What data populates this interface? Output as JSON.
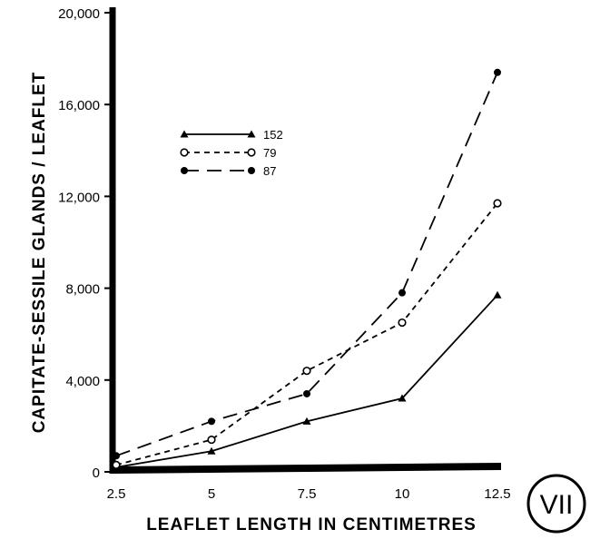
{
  "chart_data": {
    "type": "line",
    "xlabel": "LEAFLET LENGTH IN CENTIMETRES",
    "ylabel": "CAPITATE-SESSILE GLANDS / LEAFLET",
    "x": [
      2.5,
      5,
      7.5,
      10,
      12.5
    ],
    "x_tick_labels": [
      "2.5",
      "5",
      "7.5",
      "10",
      "12.5"
    ],
    "y_ticks": [
      0,
      4000,
      8000,
      12000,
      16000,
      20000
    ],
    "y_tick_labels": [
      "0",
      "4,000",
      "8,000",
      "12,000",
      "16,000",
      "20,000"
    ],
    "xlim": [
      2.5,
      12.5
    ],
    "ylim": [
      0,
      20000
    ],
    "grid": false,
    "legend_position": "upper-left",
    "panel_label": "VII",
    "series": [
      {
        "name": "152",
        "values": [
          200,
          900,
          2200,
          3200,
          7700
        ],
        "marker": "triangle",
        "dash": "solid"
      },
      {
        "name": "79",
        "values": [
          300,
          1400,
          4400,
          6500,
          11700
        ],
        "marker": "open-circle",
        "dash": "dotted"
      },
      {
        "name": "87",
        "values": [
          700,
          2200,
          3400,
          7800,
          17400
        ],
        "marker": "filled-circle",
        "dash": "dashed"
      }
    ]
  }
}
